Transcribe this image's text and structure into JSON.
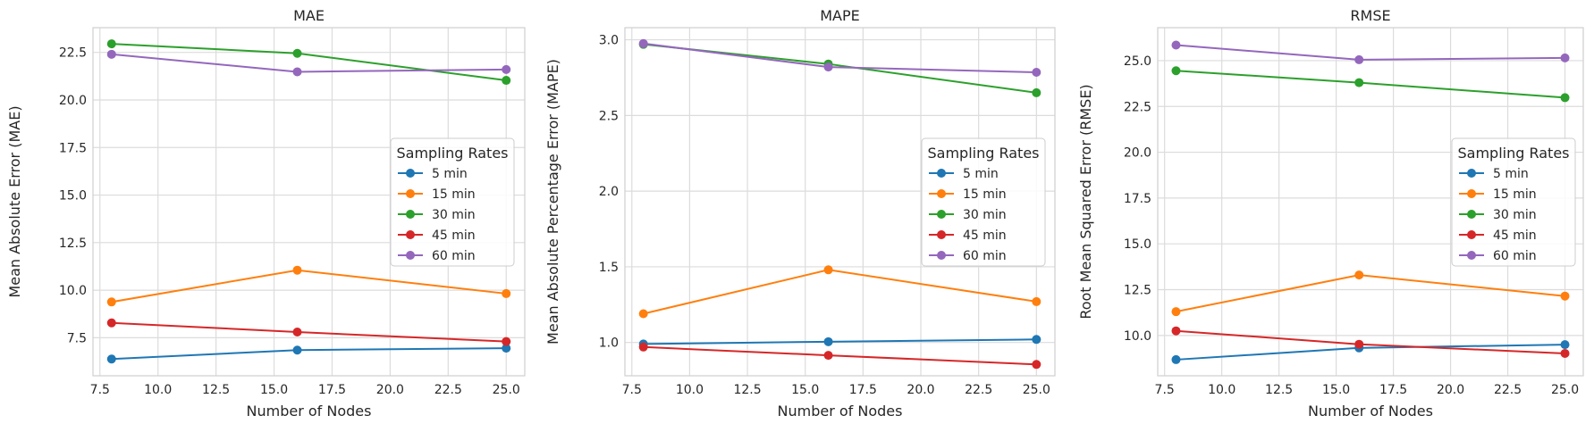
{
  "chart_data": [
    {
      "type": "line",
      "title": "MAE",
      "xlabel": "Number of Nodes",
      "ylabel": "Mean Absolute Error (MAE)",
      "x": [
        8,
        16,
        25
      ],
      "xlim": [
        7.2,
        25.8
      ],
      "ylim": [
        5.5,
        23.8
      ],
      "xticks": [
        7.5,
        10.0,
        12.5,
        15.0,
        17.5,
        20.0,
        22.5,
        25.0
      ],
      "yticks": [
        7.5,
        10.0,
        12.5,
        15.0,
        17.5,
        20.0,
        22.5
      ],
      "grid": true,
      "legend_title": "Sampling Rates",
      "legend_position": "center-right",
      "series": [
        {
          "name": "5 min",
          "color": "#1f77b4",
          "values": [
            6.38,
            6.85,
            6.95
          ]
        },
        {
          "name": "15 min",
          "color": "#ff7f0e",
          "values": [
            9.38,
            11.05,
            9.82
          ]
        },
        {
          "name": "30 min",
          "color": "#2ca02c",
          "values": [
            22.95,
            22.45,
            21.03
          ]
        },
        {
          "name": "45 min",
          "color": "#d62728",
          "values": [
            8.28,
            7.8,
            7.3
          ]
        },
        {
          "name": "60 min",
          "color": "#9467bd",
          "values": [
            22.4,
            21.48,
            21.6
          ]
        }
      ]
    },
    {
      "type": "line",
      "title": "MAPE",
      "xlabel": "Number of Nodes",
      "ylabel": "Mean Absolute Percentage Error (MAPE)",
      "x": [
        8,
        16,
        25
      ],
      "xlim": [
        7.2,
        25.8
      ],
      "ylim": [
        0.78,
        3.08
      ],
      "xticks": [
        7.5,
        10.0,
        12.5,
        15.0,
        17.5,
        20.0,
        22.5,
        25.0
      ],
      "yticks": [
        1.0,
        1.5,
        2.0,
        2.5,
        3.0
      ],
      "grid": true,
      "legend_title": "Sampling Rates",
      "legend_position": "center-right",
      "series": [
        {
          "name": "5 min",
          "color": "#1f77b4",
          "values": [
            0.99,
            1.005,
            1.02
          ]
        },
        {
          "name": "15 min",
          "color": "#ff7f0e",
          "values": [
            1.19,
            1.48,
            1.27
          ]
        },
        {
          "name": "30 min",
          "color": "#2ca02c",
          "values": [
            2.97,
            2.84,
            2.65
          ]
        },
        {
          "name": "45 min",
          "color": "#d62728",
          "values": [
            0.97,
            0.915,
            0.855
          ]
        },
        {
          "name": "60 min",
          "color": "#9467bd",
          "values": [
            2.975,
            2.82,
            2.785
          ]
        }
      ]
    },
    {
      "type": "line",
      "title": "RMSE",
      "xlabel": "Number of Nodes",
      "ylabel": "Root Mean Squared Error (RMSE)",
      "x": [
        8,
        16,
        25
      ],
      "xlim": [
        7.2,
        25.8
      ],
      "ylim": [
        7.8,
        26.8
      ],
      "xticks": [
        7.5,
        10.0,
        12.5,
        15.0,
        17.5,
        20.0,
        22.5,
        25.0
      ],
      "yticks": [
        10.0,
        12.5,
        15.0,
        17.5,
        20.0,
        22.5,
        25.0
      ],
      "grid": true,
      "legend_title": "Sampling Rates",
      "legend_position": "center-right",
      "series": [
        {
          "name": "5 min",
          "color": "#1f77b4",
          "values": [
            8.68,
            9.32,
            9.5
          ]
        },
        {
          "name": "15 min",
          "color": "#ff7f0e",
          "values": [
            11.3,
            13.3,
            12.15
          ]
        },
        {
          "name": "30 min",
          "color": "#2ca02c",
          "values": [
            24.45,
            23.8,
            22.98
          ]
        },
        {
          "name": "45 min",
          "color": "#d62728",
          "values": [
            10.25,
            9.52,
            9.02
          ]
        },
        {
          "name": "60 min",
          "color": "#9467bd",
          "values": [
            25.85,
            25.05,
            25.15
          ]
        }
      ]
    }
  ]
}
